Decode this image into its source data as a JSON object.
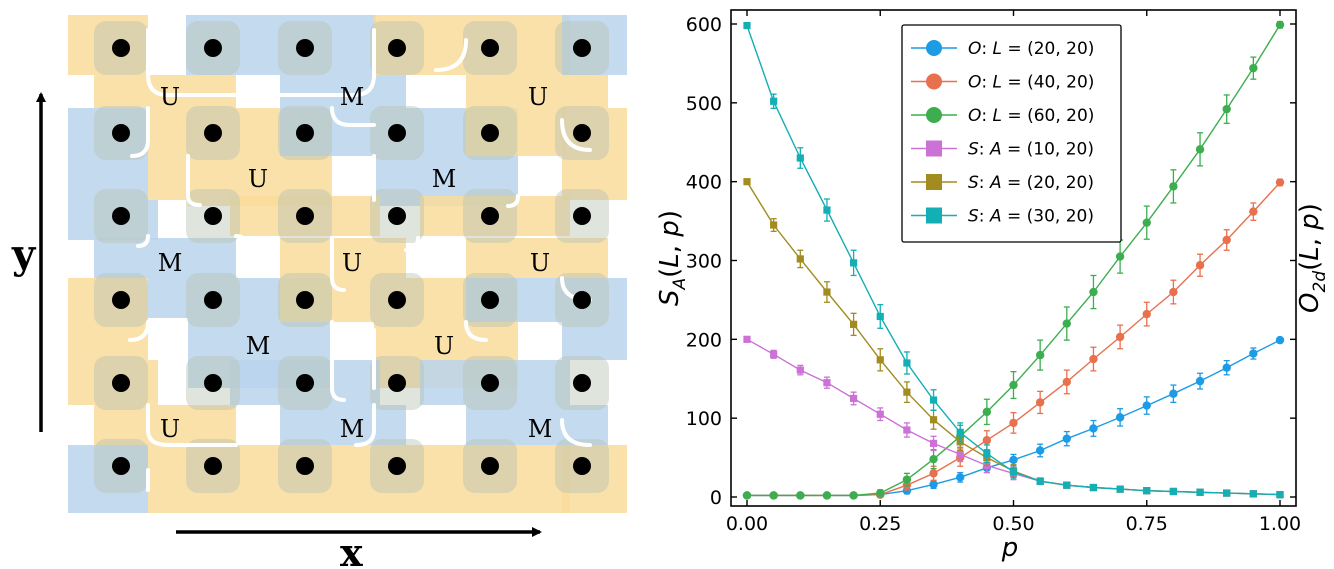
{
  "lattice": {
    "x_axis_label": "x",
    "y_axis_label": "y",
    "colors": {
      "u_block": "#f9dc9a",
      "m_block": "#b9d3ec",
      "dot": "#000000",
      "separator": "#ffffff"
    },
    "rows": [
      {
        "labels": [
          "U",
          "M",
          "U"
        ]
      },
      {
        "labels": [
          "U",
          "M"
        ]
      },
      {
        "labels": [
          "M",
          "U",
          "U"
        ]
      },
      {
        "labels": [
          "M",
          "U"
        ]
      },
      {
        "labels": [
          "U",
          "M",
          "M"
        ]
      }
    ]
  },
  "chart_data": {
    "type": "line",
    "xlabel": "p",
    "ylabel_left": "S_A(L,p)",
    "ylabel_right": "O_2d(L,p)",
    "xlim": [
      0.0,
      1.0
    ],
    "ylim": [
      0,
      600
    ],
    "xticks": [
      0.0,
      0.25,
      0.5,
      0.75,
      1.0
    ],
    "xtick_labels": [
      "0.00",
      "0.25",
      "0.50",
      "0.75",
      "1.00"
    ],
    "yticks": [
      0,
      100,
      200,
      300,
      400,
      500,
      600
    ],
    "ytick_labels": [
      "0",
      "100",
      "200",
      "300",
      "400",
      "500",
      "600"
    ],
    "legend_position": "top-center",
    "x": [
      0.0,
      0.05,
      0.1,
      0.15,
      0.2,
      0.25,
      0.3,
      0.35,
      0.4,
      0.45,
      0.5,
      0.55,
      0.6,
      0.65,
      0.7,
      0.75,
      0.8,
      0.85,
      0.9,
      0.95,
      1.0
    ],
    "series": [
      {
        "name": "O: L=(20,20)",
        "legend_prefix": "O",
        "legend_var": "L",
        "legend_value": "(20, 20)",
        "marker": "circle",
        "color": "#1c9be6",
        "values": [
          2,
          2,
          2,
          2,
          2,
          3,
          8,
          16,
          25,
          37,
          47,
          59,
          74,
          87,
          101,
          116,
          131,
          147,
          164,
          182,
          199
        ],
        "errors": [
          2,
          2,
          2,
          2,
          2,
          3,
          4,
          5,
          6,
          6,
          7,
          8,
          9,
          10,
          11,
          11,
          11,
          10,
          9,
          7,
          3
        ]
      },
      {
        "name": "O: L=(40,20)",
        "legend_prefix": "O",
        "legend_var": "L",
        "legend_value": "(40, 20)",
        "marker": "circle",
        "color": "#e8704d",
        "values": [
          2,
          2,
          2,
          2,
          2,
          3,
          15,
          30,
          50,
          72,
          94,
          120,
          146,
          175,
          203,
          232,
          260,
          294,
          326,
          362,
          399
        ],
        "errors": [
          2,
          2,
          2,
          2,
          2,
          3,
          6,
          9,
          11,
          12,
          13,
          14,
          15,
          15,
          15,
          15,
          15,
          14,
          13,
          11,
          4
        ]
      },
      {
        "name": "O: L=(60,20)",
        "legend_prefix": "O",
        "legend_var": "L",
        "legend_value": "(60, 20)",
        "marker": "circle",
        "color": "#3cae4f",
        "values": [
          2,
          2,
          2,
          2,
          2,
          5,
          22,
          48,
          77,
          108,
          142,
          180,
          220,
          260,
          305,
          348,
          394,
          441,
          492,
          544,
          599
        ],
        "errors": [
          2,
          2,
          2,
          2,
          2,
          4,
          8,
          12,
          14,
          16,
          17,
          19,
          21,
          21,
          21,
          21,
          21,
          21,
          18,
          14,
          4
        ]
      },
      {
        "name": "S: A=(10,20)",
        "legend_prefix": "S",
        "legend_var": "A",
        "legend_value": "(10, 20)",
        "marker": "square",
        "color": "#cc71d6",
        "values": [
          200,
          181,
          161,
          145,
          125,
          105,
          85,
          68,
          54,
          40,
          30,
          20,
          15,
          12,
          10,
          8,
          7,
          6,
          5,
          4,
          3
        ],
        "errors": [
          3,
          5,
          6,
          7,
          8,
          8,
          9,
          9,
          9,
          9,
          8,
          4,
          3,
          2,
          2,
          2,
          2,
          2,
          2,
          2,
          2
        ]
      },
      {
        "name": "S: A=(20,20)",
        "legend_prefix": "S",
        "legend_var": "A",
        "legend_value": "(20, 20)",
        "marker": "square",
        "color": "#a38c1f",
        "values": [
          400,
          345,
          302,
          260,
          219,
          174,
          133,
          98,
          70,
          50,
          33,
          20,
          15,
          12,
          10,
          8,
          7,
          6,
          5,
          4,
          3
        ],
        "errors": [
          3,
          8,
          11,
          13,
          14,
          14,
          13,
          12,
          11,
          10,
          8,
          4,
          3,
          2,
          2,
          2,
          2,
          2,
          2,
          2,
          2
        ]
      },
      {
        "name": "S: A=(30,20)",
        "legend_prefix": "S",
        "legend_var": "A",
        "legend_value": "(30, 20)",
        "marker": "square",
        "color": "#14aeb5",
        "values": [
          598,
          502,
          430,
          364,
          297,
          229,
          170,
          123,
          82,
          55,
          32,
          20,
          15,
          12,
          10,
          8,
          7,
          6,
          5,
          4,
          3
        ],
        "errors": [
          3,
          9,
          13,
          14,
          16,
          15,
          14,
          13,
          12,
          11,
          8,
          4,
          3,
          2,
          2,
          2,
          2,
          2,
          2,
          2,
          2
        ]
      }
    ]
  }
}
